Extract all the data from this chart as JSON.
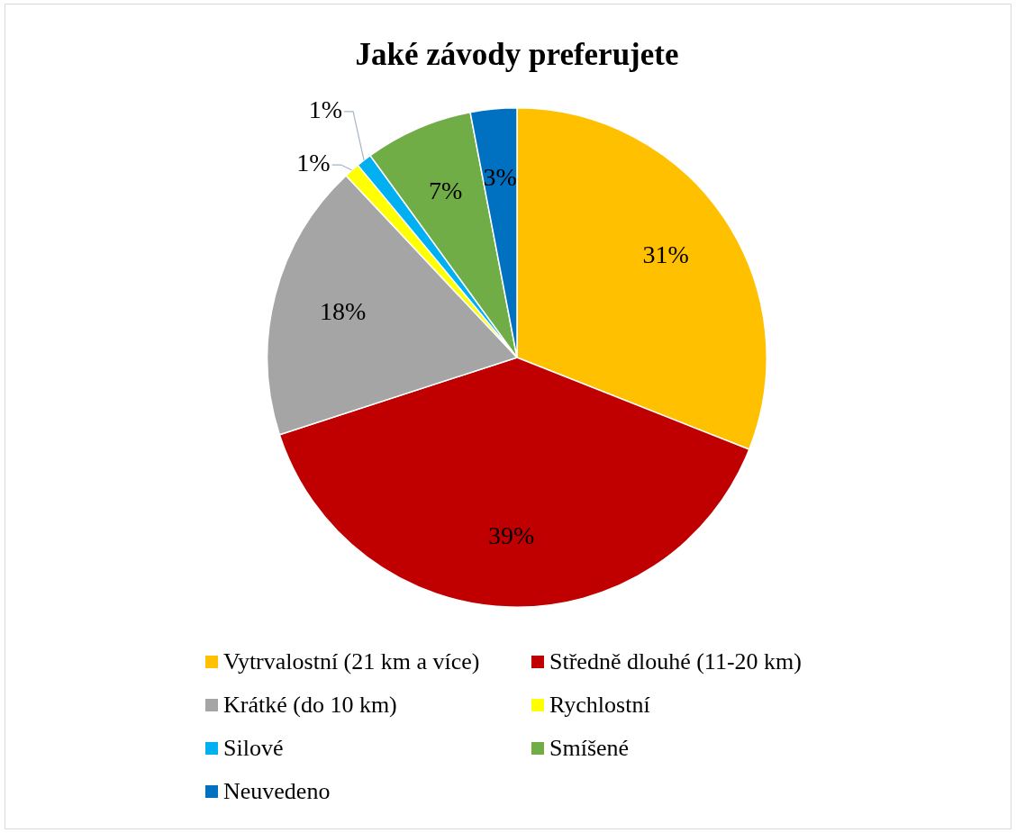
{
  "chart_data": {
    "type": "pie",
    "title": "Jaké závody preferujete",
    "categories": [
      "Vytrvalostní (21 km a více)",
      "Středně dlouhé (11-20 km)",
      "Krátké (do 10 km)",
      "Rychlostní",
      "Silové",
      "Smíšené",
      "Neuvedeno"
    ],
    "values": [
      31,
      39,
      18,
      1,
      1,
      7,
      3
    ],
    "colors": [
      "#ffc000",
      "#c00000",
      "#a5a5a5",
      "#ffff00",
      "#00b0f0",
      "#70ad47",
      "#0070c0"
    ],
    "value_labels": [
      "31%",
      "39%",
      "18%",
      "1%",
      "1%",
      "7%",
      "3%"
    ],
    "legend": "bottom"
  }
}
